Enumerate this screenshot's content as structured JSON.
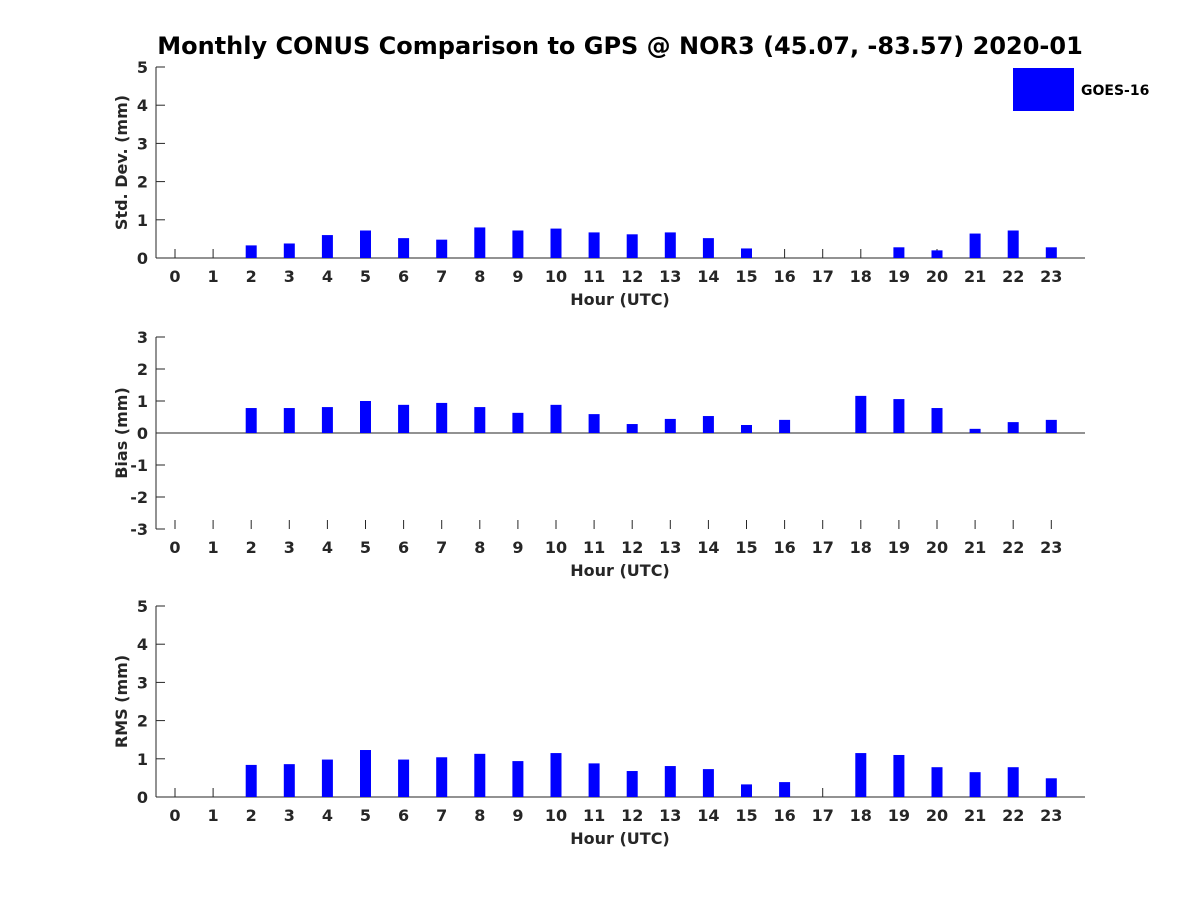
{
  "chart_data": {
    "type": "bar",
    "title": "Monthly CONUS Comparison to GPS @ NOR3 (45.07, -83.57) 2020-01",
    "legend": {
      "entries": [
        "GOES-16"
      ],
      "placement": "top-right"
    },
    "series_color": "#0000ff",
    "categories": [
      "0",
      "1",
      "2",
      "3",
      "4",
      "5",
      "6",
      "7",
      "8",
      "9",
      "10",
      "11",
      "12",
      "13",
      "14",
      "15",
      "16",
      "17",
      "18",
      "19",
      "20",
      "21",
      "22",
      "23"
    ],
    "panels": [
      {
        "id": "stddev",
        "xlabel": "Hour (UTC)",
        "ylabel": "Std. Dev. (mm)",
        "ylim": [
          0,
          5
        ],
        "yticks": [
          "0",
          "1",
          "2",
          "3",
          "4",
          "5"
        ],
        "series": [
          {
            "name": "GOES-16",
            "values": [
              null,
              null,
              0.33,
              0.38,
              0.6,
              0.72,
              0.52,
              0.48,
              0.8,
              0.72,
              0.77,
              0.67,
              0.62,
              0.67,
              0.52,
              0.25,
              null,
              null,
              null,
              0.28,
              0.2,
              0.64,
              0.72,
              0.28
            ]
          }
        ]
      },
      {
        "id": "bias",
        "xlabel": "Hour (UTC)",
        "ylabel": "Bias (mm)",
        "ylim": [
          -3,
          3
        ],
        "yticks": [
          "-3",
          "-2",
          "-1",
          "0",
          "1",
          "2",
          "3"
        ],
        "series": [
          {
            "name": "GOES-16",
            "values": [
              null,
              null,
              0.78,
              0.78,
              0.81,
              1.0,
              0.88,
              0.94,
              0.81,
              0.63,
              0.88,
              0.59,
              0.28,
              0.44,
              0.53,
              0.25,
              0.41,
              null,
              1.16,
              1.06,
              0.78,
              0.13,
              0.34,
              0.41
            ]
          }
        ]
      },
      {
        "id": "rms",
        "xlabel": "Hour (UTC)",
        "ylabel": "RMS (mm)",
        "ylim": [
          0,
          5
        ],
        "yticks": [
          "0",
          "1",
          "2",
          "3",
          "4",
          "5"
        ],
        "series": [
          {
            "name": "GOES-16",
            "values": [
              null,
              null,
              0.84,
              0.86,
              0.98,
              1.23,
              0.98,
              1.04,
              1.13,
              0.94,
              1.15,
              0.88,
              0.68,
              0.81,
              0.73,
              0.33,
              0.39,
              null,
              1.15,
              1.1,
              0.78,
              0.65,
              0.78,
              0.49
            ]
          }
        ]
      }
    ]
  }
}
